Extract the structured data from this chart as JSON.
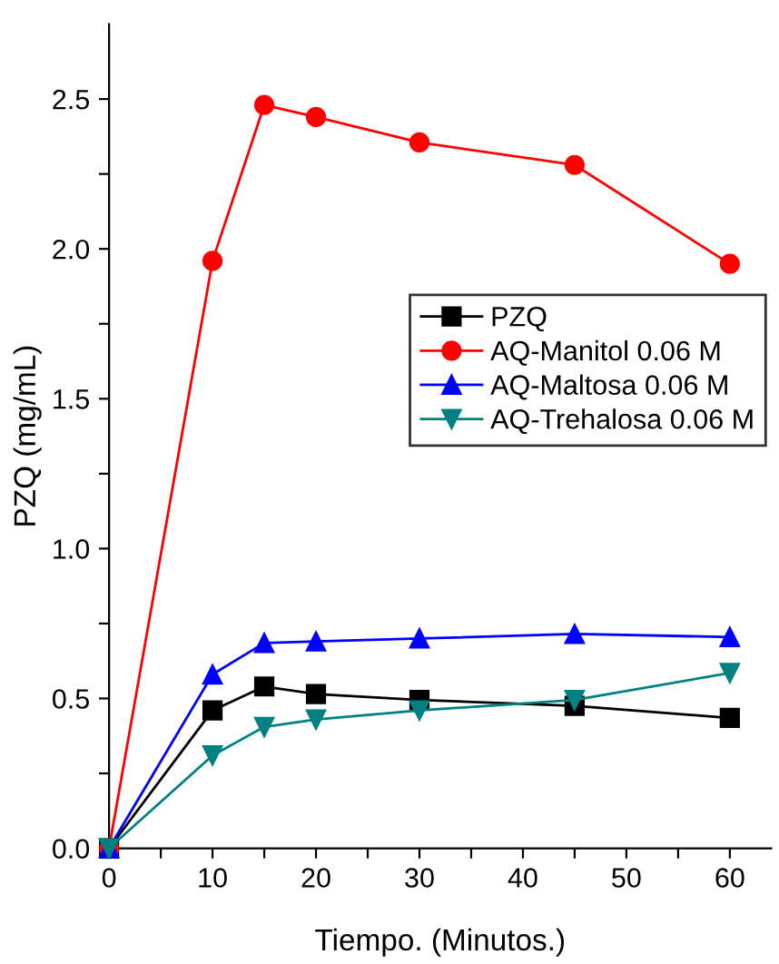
{
  "chart_data": {
    "type": "line",
    "xlabel": "Tiempo. (Minutos.)",
    "ylabel": "PZQ (mg/mL)",
    "x": [
      0,
      10,
      15,
      20,
      30,
      45,
      60
    ],
    "series": [
      {
        "name": "PZQ",
        "color": "#000000",
        "marker": "square",
        "values": [
          0,
          0.46,
          0.54,
          0.515,
          0.495,
          0.475,
          0.435
        ]
      },
      {
        "name": "AQ-Manitol 0.06 M",
        "color": "#ff0000",
        "marker": "circle",
        "values": [
          0,
          1.96,
          2.48,
          2.44,
          2.355,
          2.28,
          1.95
        ]
      },
      {
        "name": "AQ-Maltosa 0.06 M",
        "color": "#0000ff",
        "marker": "triangle",
        "values": [
          0,
          0.58,
          0.685,
          0.69,
          0.7,
          0.715,
          0.705
        ]
      },
      {
        "name": "AQ-Trehalosa 0.06 M",
        "color": "#008080",
        "marker": "triangle_down",
        "values": [
          0,
          0.31,
          0.405,
          0.43,
          0.46,
          0.495,
          0.585
        ]
      }
    ],
    "xlim": [
      0,
      64
    ],
    "ylim": [
      0,
      2.75
    ],
    "xticks": [
      0,
      {
        "value": 5,
        "label": null
      },
      10,
      {
        "value": 15,
        "label": null
      },
      20,
      {
        "value": 25,
        "label": null
      },
      30,
      {
        "value": 35,
        "label": null
      },
      40,
      {
        "value": 45,
        "label": null
      },
      50,
      {
        "value": 55,
        "label": null
      },
      60
    ],
    "yticks": [
      "0.0",
      {
        "value": 0.25,
        "label": null
      },
      {
        "value": 0.5,
        "label": "0.5"
      },
      {
        "value": 0.75,
        "label": null
      },
      {
        "value": 1.0,
        "label": "1.0"
      },
      {
        "value": 1.25,
        "label": null
      },
      {
        "value": 1.5,
        "label": "1.5"
      },
      {
        "value": 1.75,
        "label": null
      },
      {
        "value": 2.0,
        "label": "2.0"
      },
      {
        "value": 2.25,
        "label": null
      },
      {
        "value": 2.5,
        "label": "2.5"
      }
    ],
    "grid": false,
    "legend": "right",
    "line_style": "solid"
  }
}
